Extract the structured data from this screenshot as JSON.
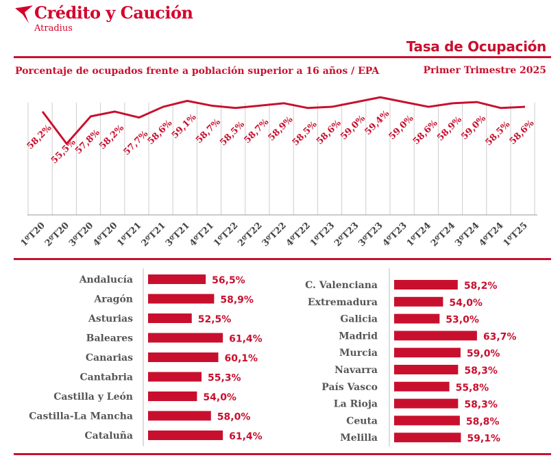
{
  "header": {
    "brand": "Crédito y Caución",
    "brand_sub": "Atradius",
    "title": "Tasa de Ocupación",
    "subtitle": "Porcentaje de ocupados frente a población superior a 16 años / EPA",
    "period": "Primer Trimestre 2025"
  },
  "colors": {
    "accent": "#c8102e",
    "axis": "#999999",
    "label_gray": "#555555"
  },
  "chart_data": [
    {
      "type": "line",
      "categories": [
        "1ºT20",
        "2ºT20",
        "3ºT20",
        "4ºT20",
        "1ºT21",
        "2ºT21",
        "3ºT21",
        "4ºT21",
        "1ºT22",
        "2ºT22",
        "3ºT22",
        "4ºT22",
        "1ºT23",
        "2ºT23",
        "3ºT23",
        "4ºT23",
        "1ºT24",
        "2ºT24",
        "3ºT24",
        "4ºT24",
        "1ºT25"
      ],
      "values": [
        58.2,
        55.5,
        57.8,
        58.2,
        57.7,
        58.6,
        59.1,
        58.7,
        58.5,
        58.7,
        58.9,
        58.5,
        58.6,
        59.0,
        59.4,
        59.0,
        58.6,
        58.9,
        59.0,
        58.5,
        58.6
      ],
      "labels": [
        "58,2%",
        "55,5%",
        "57,8%",
        "58,2%",
        "57,7%",
        "58,6%",
        "59,1%",
        "58,7%",
        "58,5%",
        "58,7%",
        "58,9%",
        "58,5%",
        "58,6%",
        "59,0%",
        "59,4%",
        "59,0%",
        "58,6%",
        "58,9%",
        "59,0%",
        "58,5%",
        "58,6%"
      ],
      "grid": true
    },
    {
      "type": "bar",
      "orientation": "horizontal",
      "categories": [
        "Andalucía",
        "Aragón",
        "Asturias",
        "Baleares",
        "Canarias",
        "Cantabria",
        "Castilla y León",
        "Castilla-La Mancha",
        "Cataluña"
      ],
      "values": [
        56.5,
        58.9,
        52.5,
        61.4,
        60.1,
        55.3,
        54.0,
        58.0,
        61.4
      ],
      "labels": [
        "56,5%",
        "58,9%",
        "52,5%",
        "61,4%",
        "60,1%",
        "55,3%",
        "54,0%",
        "58,0%",
        "61,4%"
      ]
    },
    {
      "type": "bar",
      "orientation": "horizontal",
      "categories": [
        "C. Valenciana",
        "Extremadura",
        "Galicia",
        "Madrid",
        "Murcia",
        "Navarra",
        "País Vasco",
        "La Rioja",
        "Ceuta",
        "Melilla"
      ],
      "values": [
        58.2,
        54.0,
        53.0,
        63.7,
        59.0,
        58.3,
        55.8,
        58.3,
        58.8,
        59.1
      ],
      "labels": [
        "58,2%",
        "54,0%",
        "53,0%",
        "63,7%",
        "59,0%",
        "58,3%",
        "55,8%",
        "58,3%",
        "58,8%",
        "59,1%"
      ]
    }
  ]
}
